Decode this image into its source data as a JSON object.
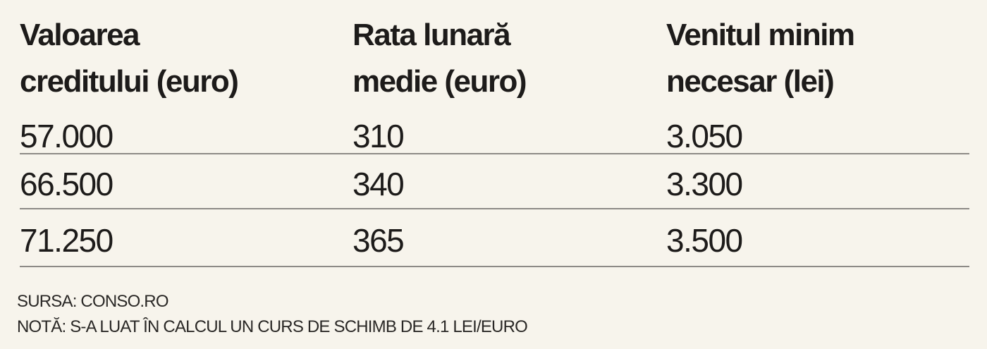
{
  "table": {
    "header": [
      [
        "Valoarea",
        "creditului (euro)"
      ],
      [
        "Rata lunară",
        "medie (euro)"
      ],
      [
        "Venitul minim",
        "necesar (lei)"
      ]
    ],
    "rows": [
      [
        "57.000",
        "310",
        "3.050"
      ],
      [
        "66.500",
        "340",
        "3.300"
      ],
      [
        "71.250",
        "365",
        "3.500"
      ]
    ]
  },
  "footer": {
    "source": "SURSA: CONSO.RO",
    "note": "NOTĂ: S-A LUAT ÎN CALCUL UN CURS DE SCHIMB DE 4.1 LEI/EURO"
  }
}
